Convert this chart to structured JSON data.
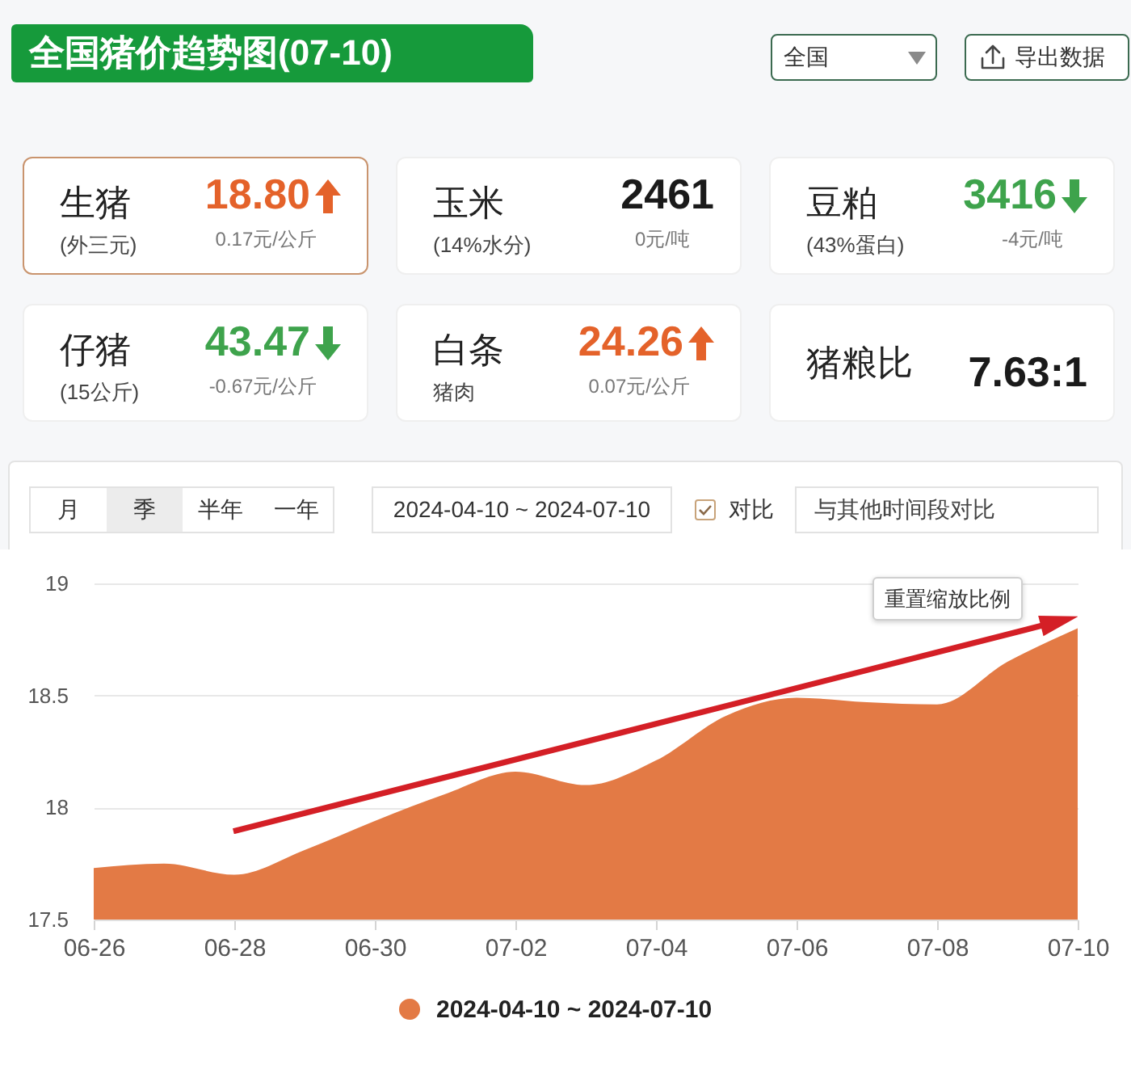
{
  "chart_data": [
    {
      "type": "other",
      "title": "全国猪价趋势图(07-10)",
      "annotations": [
        "全国",
        "导出数据"
      ]
    },
    {
      "type": "other",
      "title": "生猪",
      "subtitle": "(外三元)",
      "annotations": [
        "18.80",
        "0.17元/公斤"
      ]
    },
    {
      "type": "other",
      "title": "玉米",
      "subtitle": "(14%水分)",
      "annotations": [
        "2461",
        "0元/吨"
      ]
    },
    {
      "type": "other",
      "title": "豆粕",
      "subtitle": "(43%蛋白)",
      "annotations": [
        "3416",
        "-4元/吨"
      ]
    },
    {
      "type": "other",
      "title": "仔猪",
      "subtitle": "(15公斤)",
      "annotations": [
        "43.47",
        "-0.67元/公斤"
      ]
    },
    {
      "type": "other",
      "title": "白条",
      "subtitle": "猪肉",
      "annotations": [
        "24.26",
        "0.07元/公斤"
      ]
    },
    {
      "type": "other",
      "title": "猪粮比",
      "annotations": [
        "7.63:1"
      ]
    },
    {
      "type": "other",
      "annotations": [
        "月",
        "季",
        "半年",
        "一年",
        "2024-04-10 ~ 2024-07-10",
        "对比",
        "与其他时间段对比"
      ]
    },
    {
      "type": "area",
      "categories": [
        "06-26",
        null,
        "06-28",
        null,
        "06-30",
        null,
        "07-02",
        null,
        "07-04",
        null,
        "07-06",
        null,
        "07-08",
        null,
        "07-10"
      ],
      "series": [
        {
          "name": "2024-04-10 ~ 2024-07-10",
          "color": "#e37a45",
          "values": [
            17.73,
            17.75,
            17.7,
            17.81,
            17.94,
            18.06,
            18.16,
            18.1,
            18.21,
            18.41,
            18.49,
            18.47,
            18.46,
            18.65,
            18.8
          ]
        }
      ],
      "ylim": [
        17.5,
        19
      ],
      "yticks": [
        17.5,
        18,
        18.5,
        19
      ],
      "grid": "y",
      "legend": "bottom",
      "annotations": [
        "重置缩放比例"
      ]
    }
  ]
}
